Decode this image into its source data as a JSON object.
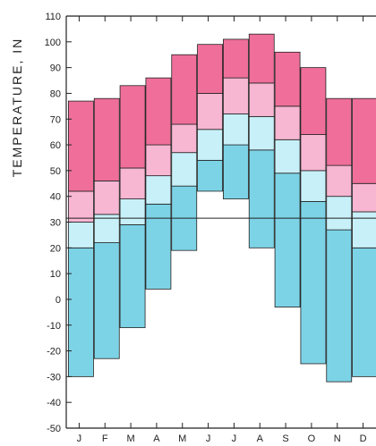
{
  "chart_data": {
    "type": "bar",
    "title": "",
    "ylabel": "TEMPERATURE, IN",
    "xlabel": "",
    "ylim": [
      -50,
      110
    ],
    "ytick_step": 10,
    "reference_line": 31.5,
    "categories": [
      "J",
      "F",
      "M",
      "A",
      "M",
      "J",
      "J",
      "A",
      "S",
      "O",
      "N",
      "D"
    ],
    "series": [
      {
        "values": [
          -30,
          -23,
          -11,
          4,
          19,
          42,
          39,
          20,
          -3,
          -25,
          -32,
          -30
        ]
      },
      {
        "values": [
          20,
          22,
          29,
          37,
          44,
          54,
          60,
          58,
          49,
          38,
          27,
          20
        ]
      },
      {
        "values": [
          30,
          33,
          39,
          48,
          57,
          66,
          72,
          71,
          62,
          50,
          40,
          34
        ]
      },
      {
        "values": [
          42,
          46,
          51,
          60,
          68,
          80,
          86,
          84,
          75,
          64,
          52,
          45
        ]
      },
      {
        "values": [
          77,
          78,
          83,
          86,
          95,
          99,
          101,
          103,
          96,
          90,
          78,
          78
        ]
      }
    ],
    "colors": {
      "lower_band": "#7dd3e6",
      "lower_band_light": "#c8f0f8",
      "upper_band_light": "#f7b6d2",
      "upper_band": "#ef6f9a",
      "stroke": "#222222"
    }
  }
}
